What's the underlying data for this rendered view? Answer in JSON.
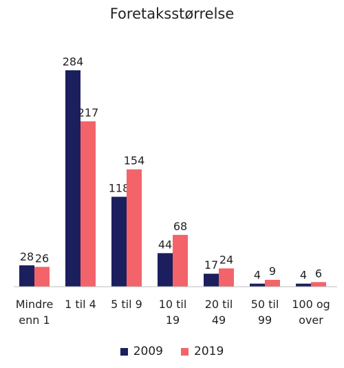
{
  "chart_data": {
    "type": "bar",
    "title": "Foretaksstørrelse",
    "categories": [
      [
        "Mindre",
        "enn 1"
      ],
      [
        "1 til 4"
      ],
      [
        "5 til 9"
      ],
      [
        "10 til",
        "19"
      ],
      [
        "20 til",
        "49"
      ],
      [
        "50 til",
        "99"
      ],
      [
        "100 og",
        "over"
      ]
    ],
    "series": [
      {
        "name": "2009",
        "values": [
          28,
          284,
          118,
          44,
          17,
          4,
          4
        ]
      },
      {
        "name": "2019",
        "values": [
          26,
          217,
          154,
          68,
          24,
          9,
          6
        ]
      }
    ],
    "ylim": [
      0,
      284
    ],
    "grid": false,
    "legend": "bottom-center",
    "colors": [
      "#1b1f5e",
      "#f26469"
    ]
  }
}
